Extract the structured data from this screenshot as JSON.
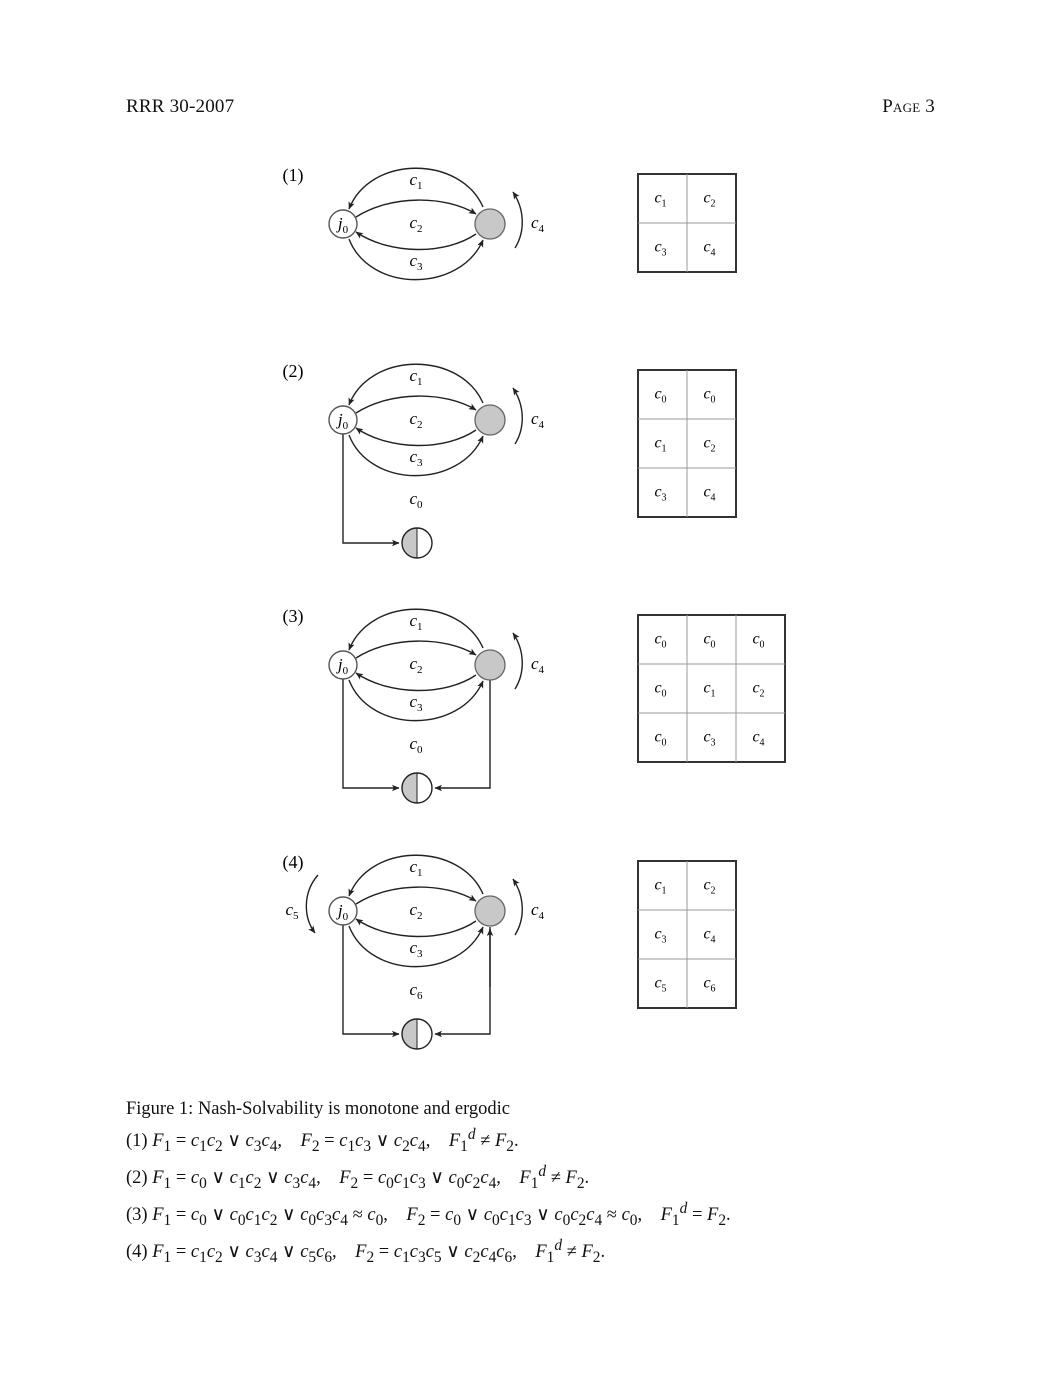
{
  "header": {
    "left": "RRR 30-2007",
    "right": "Page 3"
  },
  "figures": [
    {
      "number": "(1)",
      "labels": [
        "c1",
        "c2",
        "c3",
        "c4"
      ],
      "table": [
        [
          "c1",
          "c2"
        ],
        [
          "c3",
          "c4"
        ]
      ]
    },
    {
      "number": "(2)",
      "labels": [
        "c1",
        "c2",
        "c3",
        "c4",
        "c0"
      ],
      "table": [
        [
          "c0",
          "c0"
        ],
        [
          "c1",
          "c2"
        ],
        [
          "c3",
          "c4"
        ]
      ]
    },
    {
      "number": "(3)",
      "labels": [
        "c1",
        "c2",
        "c3",
        "c4",
        "c0"
      ],
      "table": [
        [
          "c0",
          "c0",
          "c0"
        ],
        [
          "c0",
          "c1",
          "c2"
        ],
        [
          "c0",
          "c3",
          "c4"
        ]
      ]
    },
    {
      "number": "(4)",
      "labels": [
        "c1",
        "c2",
        "c3",
        "c4",
        "c5",
        "c6"
      ],
      "table": [
        [
          "c1",
          "c2"
        ],
        [
          "c3",
          "c4"
        ],
        [
          "c5",
          "c6"
        ]
      ]
    }
  ],
  "node_label": "j0",
  "caption": {
    "title": "Figure 1: Nash-Solvability is monotone and ergodic",
    "lines": [
      "(1) F1 = c1c2 ∨ c3c4,   F2 = c1c3 ∨ c2c4,   F1d ≠ F2.",
      "(2) F1 = c0 ∨ c1c2 ∨ c3c4,   F2 = c0c1c3 ∨ c0c2c4,   F1d ≠ F2.",
      "(3) F1 = c0 ∨ c0c1c2 ∨ c0c3c4 ≈ c0,   F2 = c0 ∨ c0c1c3 ∨ c0c2c4 ≈ c0,   F1d = F2.",
      "(4) F1 = c1c2 ∨ c3c4 ∨ c5c6,   F2 = c1c3c5 ∨ c2c4c6,   F1d ≠ F2."
    ]
  },
  "colors": {
    "node_fill": "#c8c8c8",
    "line": "#222222"
  }
}
